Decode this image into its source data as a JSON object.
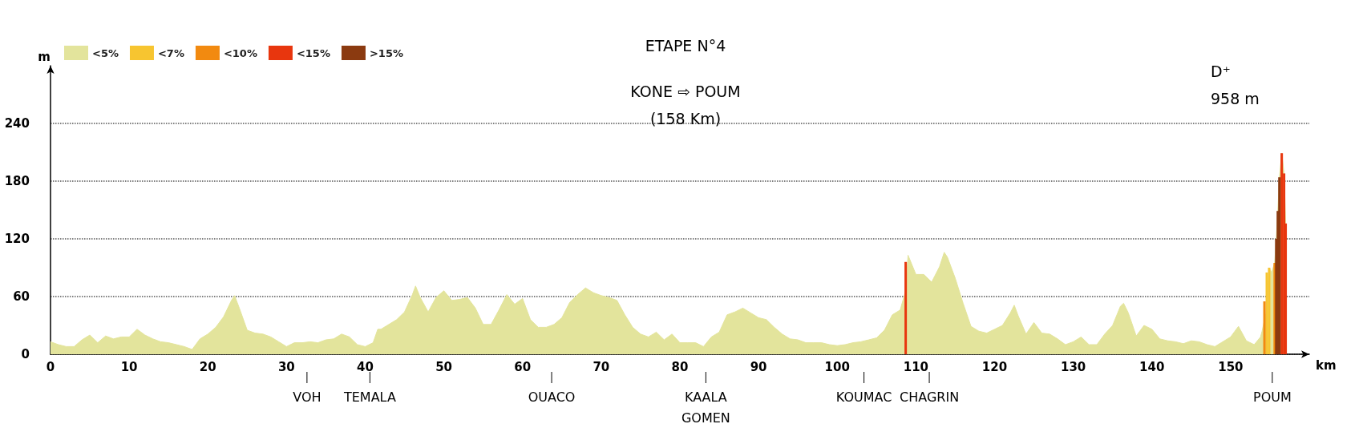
{
  "chart_data": {
    "type": "area",
    "title": "ETAPE N°4",
    "subtitle": "KONE ⇨ POUM\n(158 Km)",
    "xlabel": "km",
    "ylabel": "m",
    "xlim": [
      0,
      160
    ],
    "xticks": [
      0,
      10,
      20,
      30,
      40,
      50,
      60,
      70,
      80,
      90,
      100,
      110,
      120,
      130,
      140,
      150
    ],
    "ylim": [
      0,
      300
    ],
    "yticks": [
      0,
      60,
      120,
      180,
      240
    ],
    "grid": "y",
    "legend": "top left",
    "marker": "none",
    "annotations": [
      "D⁺\n958 m",
      {
        "text": "VOH",
        "x": 32.6,
        "y": 0
      },
      {
        "text": "TEMALA",
        "x": 40.6,
        "y": 0
      },
      {
        "text": "OUACO",
        "x": 63.7,
        "y": 0
      },
      {
        "text": "KAALA\nGOMEN",
        "x": 83.3,
        "y": 0
      },
      {
        "text": "KOUMAC",
        "x": 103.4,
        "y": 0
      },
      {
        "text": "CHAGRIN",
        "x": 111.7,
        "y": 0
      },
      {
        "text": "POUM",
        "x": 155.3,
        "y": 0
      }
    ],
    "series": [
      {
        "name": "<5%",
        "color": "#e3e49c",
        "x": [
          0,
          1,
          2,
          3,
          4,
          5,
          6,
          7,
          8,
          9,
          10,
          11,
          12,
          13,
          14,
          15,
          16,
          17,
          18,
          19,
          20,
          21,
          22,
          23,
          23.4,
          24,
          25,
          26,
          27,
          28,
          29,
          30,
          31,
          32,
          33,
          34,
          35,
          36,
          37,
          38,
          39,
          40,
          41,
          41.6,
          42,
          43,
          44,
          45,
          46,
          46.4,
          47,
          48,
          49,
          50,
          51,
          52,
          53,
          54,
          55,
          56,
          57,
          58,
          59,
          60,
          61,
          62,
          63,
          64,
          65,
          66,
          67,
          68,
          69,
          70,
          71,
          72,
          73,
          74,
          75,
          76,
          77,
          78,
          79,
          80,
          81,
          82,
          83,
          84,
          85,
          86,
          87,
          88,
          89,
          90,
          91,
          92,
          93,
          94,
          95,
          96,
          97,
          98,
          99,
          100,
          101,
          102,
          103,
          104,
          105,
          106,
          107,
          108,
          108.7,
          109,
          110,
          111,
          112,
          113,
          113.6,
          114,
          115,
          116,
          117,
          118,
          119,
          120,
          121,
          122,
          122.5,
          123,
          124,
          125,
          126,
          127,
          128,
          129,
          130,
          131,
          132,
          133,
          134,
          135,
          136,
          136.4,
          137,
          138,
          139,
          140,
          141,
          142,
          143,
          144,
          145,
          146,
          147,
          148,
          149,
          150,
          151,
          152,
          153,
          153.8,
          154,
          154.5,
          154.9,
          155.2,
          155.6,
          155.8,
          156,
          156.2,
          156.5,
          156.8,
          157,
          157.1
        ],
        "values": [
          13,
          10,
          8,
          8,
          15,
          20,
          12,
          19,
          16,
          18,
          18,
          26,
          20,
          16,
          13,
          12,
          10,
          8,
          5,
          16,
          21,
          28,
          39,
          56,
          61,
          48,
          25,
          22,
          21,
          18,
          13,
          8,
          12,
          12,
          13,
          12,
          15,
          16,
          21,
          18,
          10,
          8,
          12,
          26,
          26,
          31,
          36,
          44,
          62,
          71,
          59,
          44,
          59,
          66,
          56,
          57,
          59,
          48,
          31,
          31,
          46,
          62,
          52,
          58,
          36,
          28,
          28,
          31,
          38,
          54,
          62,
          69,
          64,
          61,
          59,
          56,
          41,
          28,
          21,
          18,
          23,
          15,
          21,
          12,
          12,
          12,
          8,
          18,
          23,
          41,
          44,
          48,
          43,
          38,
          36,
          28,
          21,
          16,
          15,
          12,
          12,
          12,
          10,
          9,
          10,
          12,
          13,
          15,
          17,
          25,
          41,
          46,
          66,
          103,
          83,
          83,
          75,
          91,
          106,
          101,
          79,
          53,
          29,
          24,
          22,
          26,
          30,
          43,
          51,
          40,
          21,
          33,
          22,
          21,
          16,
          10,
          13,
          18,
          10,
          10,
          21,
          30,
          50,
          53,
          43,
          19,
          30,
          26,
          16,
          14,
          13,
          11,
          14,
          13,
          10,
          8,
          13,
          18,
          29,
          14,
          10,
          18,
          24,
          43,
          90,
          85,
          95,
          120,
          149,
          184,
          209,
          188,
          136,
          0
        ]
      },
      {
        "name": "<7%",
        "type": "bar",
        "color": "#f7c530",
        "x": [
          154.6,
          154.9
        ],
        "values": [
          85,
          90
        ]
      },
      {
        "name": "<10%",
        "type": "bar",
        "color": "#f28a10",
        "x": [
          154.3,
          155.6
        ],
        "values": [
          55,
          95
        ]
      },
      {
        "name": "<15%",
        "type": "bar",
        "color": "#e8360e",
        "x": [
          108.7,
          156.5,
          156.8,
          157
        ],
        "values": [
          96,
          209,
          188,
          136
        ]
      },
      {
        "name": ">15%",
        "type": "bar",
        "color": "#8b3a10",
        "x": [
          155.8,
          156,
          156.2
        ],
        "values": [
          120,
          149,
          184
        ]
      }
    ]
  }
}
